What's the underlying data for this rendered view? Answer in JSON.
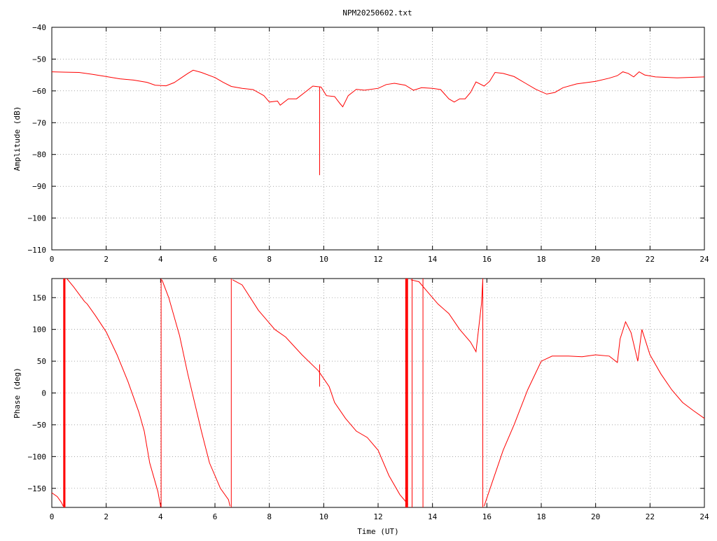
{
  "chart_data": {
    "title": "NPM20250602.txt",
    "series_color": "#ff0000",
    "panels": [
      {
        "type": "line",
        "ylabel": "Amplitude (dB)",
        "xlim": [
          0,
          24
        ],
        "ylim": [
          -110,
          -40
        ],
        "xticks": [
          0,
          2,
          4,
          6,
          8,
          10,
          12,
          14,
          16,
          18,
          20,
          22,
          24
        ],
        "yticks": [
          -110,
          -100,
          -90,
          -80,
          -70,
          -60,
          -50,
          -40
        ],
        "tick_labels_y": [
          "−110",
          "−100",
          "−90",
          "−80",
          "−70",
          "−60",
          "−50",
          "−40"
        ],
        "tick_labels_x": [
          "0",
          "2",
          "4",
          "6",
          "8",
          "10",
          "12",
          "14",
          "16",
          "18",
          "20",
          "22",
          "24"
        ],
        "grid": true,
        "series": [
          {
            "points": [
              [
                0,
                -54
              ],
              [
                0.5,
                -54.1
              ],
              [
                1,
                -54.2
              ],
              [
                1.5,
                -54.8
              ],
              [
                2,
                -55.5
              ],
              [
                2.5,
                -56.2
              ],
              [
                3,
                -56.6
              ],
              [
                3.5,
                -57.3
              ],
              [
                3.8,
                -58.2
              ],
              [
                4.2,
                -58.4
              ],
              [
                4.5,
                -57.4
              ],
              [
                5,
                -54.5
              ],
              [
                5.2,
                -53.5
              ],
              [
                5.5,
                -54.2
              ],
              [
                6,
                -55.8
              ],
              [
                6.3,
                -57.3
              ],
              [
                6.6,
                -58.6
              ],
              [
                7,
                -59.2
              ],
              [
                7.4,
                -59.6
              ],
              [
                7.8,
                -61.5
              ],
              [
                8,
                -63.5
              ],
              [
                8.3,
                -63.2
              ],
              [
                8.4,
                -64.5
              ],
              [
                8.7,
                -62.5
              ],
              [
                9,
                -62.5
              ],
              [
                9.3,
                -60.5
              ],
              [
                9.6,
                -58.5
              ],
              [
                9.9,
                -58.8
              ],
              [
                10.1,
                -61.5
              ],
              [
                10.4,
                -61.8
              ],
              [
                10.6,
                -64
              ],
              [
                10.7,
                -65
              ],
              [
                10.9,
                -61.5
              ],
              [
                11.2,
                -59.5
              ],
              [
                11.5,
                -59.8
              ],
              [
                12,
                -59.2
              ],
              [
                12.3,
                -58
              ],
              [
                12.6,
                -57.6
              ],
              [
                13,
                -58.2
              ],
              [
                13.3,
                -59.8
              ],
              [
                13.6,
                -59
              ],
              [
                14,
                -59.2
              ],
              [
                14.3,
                -59.6
              ],
              [
                14.6,
                -62.5
              ],
              [
                14.8,
                -63.5
              ],
              [
                15,
                -62.5
              ],
              [
                15.2,
                -62.5
              ],
              [
                15.4,
                -60.5
              ],
              [
                15.6,
                -57.2
              ],
              [
                15.9,
                -58.5
              ],
              [
                16.1,
                -57
              ],
              [
                16.3,
                -54.2
              ],
              [
                16.6,
                -54.5
              ],
              [
                17,
                -55.5
              ],
              [
                17.4,
                -57.5
              ],
              [
                17.8,
                -59.5
              ],
              [
                18.2,
                -61
              ],
              [
                18.5,
                -60.5
              ],
              [
                18.8,
                -59
              ],
              [
                19.3,
                -57.8
              ],
              [
                20,
                -57
              ],
              [
                20.5,
                -56
              ],
              [
                20.8,
                -55.2
              ],
              [
                21,
                -54
              ],
              [
                21.2,
                -54.5
              ],
              [
                21.4,
                -55.6
              ],
              [
                21.6,
                -54
              ],
              [
                21.8,
                -55
              ],
              [
                22.2,
                -55.6
              ],
              [
                23,
                -55.9
              ],
              [
                24,
                -55.6
              ]
            ],
            "spikes": [
              {
                "x": 9.85,
                "y_from": -58.8,
                "y_to": -86.5
              }
            ]
          }
        ]
      },
      {
        "type": "line",
        "ylabel": "Phase (deg)",
        "xlabel": "Time (UT)",
        "xlim": [
          0,
          24
        ],
        "ylim": [
          -180,
          180
        ],
        "xticks": [
          0,
          2,
          4,
          6,
          8,
          10,
          12,
          14,
          16,
          18,
          20,
          22,
          24
        ],
        "yticks": [
          -150,
          -100,
          -50,
          0,
          50,
          100,
          150
        ],
        "tick_labels_y": [
          "−150",
          "−100",
          "−50",
          "0",
          "50",
          "100",
          "150"
        ],
        "tick_labels_x": [
          "0",
          "2",
          "4",
          "6",
          "8",
          "10",
          "12",
          "14",
          "16",
          "18",
          "20",
          "22",
          "24"
        ],
        "grid": true,
        "series": [
          {
            "points": [
              [
                0,
                -157
              ],
              [
                0.2,
                -163
              ],
              [
                0.35,
                -172
              ],
              [
                0.42,
                -178
              ]
            ]
          },
          {
            "points": [
              [
                0.55,
                180
              ],
              [
                0.8,
                167
              ],
              [
                1.2,
                144
              ],
              [
                1.3,
                140
              ],
              [
                1.6,
                122
              ],
              [
                2,
                96
              ],
              [
                2.4,
                60
              ],
              [
                2.8,
                18
              ],
              [
                3.2,
                -30
              ],
              [
                3.4,
                -60
              ],
              [
                3.6,
                -110
              ],
              [
                3.9,
                -155
              ],
              [
                4.0,
                -178
              ]
            ]
          },
          {
            "points": [
              [
                4.05,
                178
              ],
              [
                4.3,
                150
              ],
              [
                4.7,
                90
              ],
              [
                5,
                30
              ],
              [
                5.5,
                -60
              ],
              [
                5.8,
                -110
              ],
              [
                6.2,
                -150
              ],
              [
                6.5,
                -168
              ],
              [
                6.55,
                -178
              ]
            ]
          },
          {
            "points": [
              [
                6.65,
                178
              ],
              [
                7,
                170
              ],
              [
                7.6,
                130
              ],
              [
                8.2,
                100
              ],
              [
                8.6,
                88
              ],
              [
                9.2,
                60
              ],
              [
                9.8,
                35
              ],
              [
                10.2,
                10
              ],
              [
                10.4,
                -15
              ],
              [
                10.8,
                -40
              ],
              [
                11.2,
                -60
              ],
              [
                11.6,
                -70
              ],
              [
                12,
                -90
              ],
              [
                12.4,
                -130
              ],
              [
                12.8,
                -160
              ],
              [
                13.1,
                -175
              ]
            ]
          },
          {
            "points": [
              [
                13.2,
                178
              ],
              [
                13.5,
                175
              ],
              [
                13.8,
                160
              ],
              [
                14.2,
                140
              ],
              [
                14.6,
                125
              ],
              [
                15,
                100
              ],
              [
                15.4,
                80
              ],
              [
                15.6,
                65
              ],
              [
                15.8,
                140
              ],
              [
                15.85,
                178
              ]
            ]
          },
          {
            "points": [
              [
                15.9,
                -178
              ],
              [
                16.2,
                -140
              ],
              [
                16.6,
                -90
              ],
              [
                17,
                -50
              ],
              [
                17.5,
                5
              ],
              [
                18,
                50
              ],
              [
                18.4,
                58
              ],
              [
                19,
                58
              ],
              [
                19.5,
                57
              ],
              [
                20,
                60
              ],
              [
                20.5,
                58
              ],
              [
                20.8,
                48
              ],
              [
                20.9,
                85
              ],
              [
                21.1,
                112
              ],
              [
                21.3,
                95
              ],
              [
                21.55,
                50
              ],
              [
                21.7,
                100
              ],
              [
                22,
                60
              ],
              [
                22.4,
                30
              ],
              [
                22.8,
                5
              ],
              [
                23.2,
                -15
              ],
              [
                23.6,
                -28
              ],
              [
                24,
                -40
              ]
            ]
          }
        ],
        "bands": [
          {
            "x_from": 0.42,
            "x_to": 0.5
          },
          {
            "x_from": 13.0,
            "x_to": 13.1
          }
        ],
        "spikes": [
          {
            "x": 4.02,
            "y_from": -180,
            "y_to": 180
          },
          {
            "x": 6.6,
            "y_from": -180,
            "y_to": 180
          },
          {
            "x": 9.85,
            "y_from": 10,
            "y_to": 45
          },
          {
            "x": 13.25,
            "y_from": -180,
            "y_to": 180
          },
          {
            "x": 13.65,
            "y_from": -180,
            "y_to": 180
          },
          {
            "x": 15.85,
            "y_from": -180,
            "y_to": 180
          }
        ]
      }
    ]
  }
}
